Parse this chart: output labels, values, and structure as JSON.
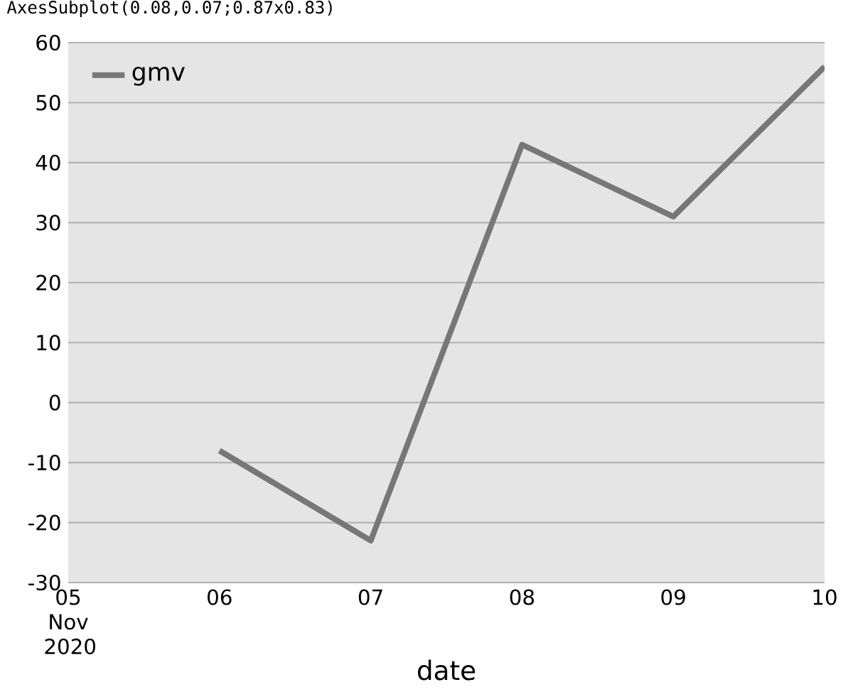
{
  "chart_data": {
    "type": "line",
    "title": "AxesSubplot(0.08,0.07;0.87x0.83)",
    "xlabel": "date",
    "x": [
      "2020-11-06",
      "2020-11-07",
      "2020-11-08",
      "2020-11-09",
      "2020-11-10"
    ],
    "series": [
      {
        "name": "gmv",
        "color": "#777777",
        "values": [
          -8,
          -23,
          43,
          31,
          56
        ]
      }
    ],
    "xlim": [
      "2020-11-05",
      "2020-11-10"
    ],
    "xticks": [
      {
        "value": "2020-11-05",
        "label": "05 Nov 2020"
      },
      {
        "value": "2020-11-06",
        "label": "06"
      },
      {
        "value": "2020-11-07",
        "label": "07"
      },
      {
        "value": "2020-11-08",
        "label": "08"
      },
      {
        "value": "2020-11-09",
        "label": "09"
      },
      {
        "value": "2020-11-10",
        "label": "10"
      }
    ],
    "ylim": [
      -30,
      60
    ],
    "yticks": [
      -30,
      -20,
      -10,
      0,
      10,
      20,
      30,
      40,
      50,
      60
    ],
    "grid": "y",
    "legend": "top left",
    "marker": "none",
    "line_style": "solid"
  }
}
